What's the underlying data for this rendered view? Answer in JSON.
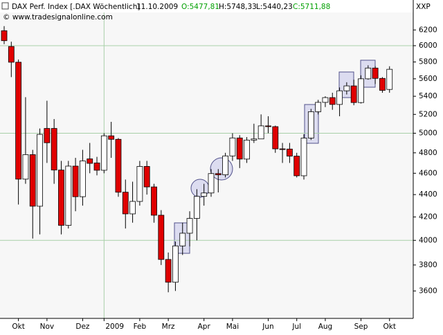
{
  "chart_data": {
    "type": "candlestick",
    "header": {
      "name": "DAX Perf. Index [.DAX  Wöchentlich]",
      "date": "11.10.2009",
      "open": "O:5477,81",
      "high": "H:5748,33",
      "low": "L:5440,23",
      "close": "C:5711,88",
      "source": "© www.tradesignalonline.com",
      "corner": "XXP"
    },
    "categories": [
      null,
      null,
      "Okt",
      null,
      null,
      null,
      "Nov",
      null,
      null,
      null,
      null,
      "Dez",
      null,
      null,
      "2009",
      null,
      null,
      null,
      null,
      "Feb",
      null,
      null,
      null,
      "Mrz",
      null,
      null,
      null,
      null,
      "Apr",
      null,
      null,
      null,
      "Mai",
      null,
      null,
      null,
      null,
      "Jun",
      null,
      null,
      null,
      "Jul",
      null,
      null,
      null,
      "Aug",
      null,
      null,
      null,
      null,
      "Sep",
      null,
      null,
      null,
      "Okt"
    ],
    "open": [
      6190,
      5990,
      5797,
      4544,
      4782,
      4295,
      5050,
      5050,
      4631,
      4127,
      4669,
      4381,
      4740,
      4700,
      4629,
      4973,
      4937,
      4422,
      4227,
      4338,
      4666,
      4471,
      4215,
      3844,
      3666,
      3954,
      4060,
      4187,
      4384,
      4415,
      4597,
      4585,
      4769,
      4951,
      4738,
      4929,
      4941,
      5077,
      5069,
      4840,
      4838,
      4767,
      4576,
      4950,
      5229,
      5332,
      5385,
      5309,
      5462,
      5518,
      5330,
      5600,
      5727,
      5605,
      5477.81
    ],
    "high": [
      6250,
      6050,
      5830,
      5390,
      4830,
      5050,
      5350,
      5150,
      4720,
      4720,
      4750,
      4830,
      4900,
      4760,
      5000,
      5120,
      4950,
      4540,
      4520,
      4720,
      4720,
      4500,
      4260,
      3900,
      3990,
      4150,
      4250,
      4450,
      4500,
      4640,
      4640,
      4800,
      5000,
      4980,
      4960,
      5100,
      5200,
      5180,
      5080,
      4900,
      4900,
      4800,
      4990,
      5260,
      5360,
      5400,
      5440,
      5500,
      5560,
      5590,
      5640,
      5760,
      5750,
      5620,
      5748.33
    ],
    "low": [
      6020,
      5620,
      4310,
      4500,
      4015,
      4050,
      4700,
      4500,
      4050,
      4100,
      4250,
      4300,
      4600,
      4580,
      4600,
      4750,
      4380,
      4100,
      4150,
      4300,
      4400,
      4150,
      3800,
      3590,
      3600,
      3880,
      3950,
      4000,
      4300,
      4380,
      4420,
      4560,
      4720,
      4650,
      4700,
      4900,
      4950,
      5000,
      4800,
      4700,
      4700,
      4560,
      4540,
      4930,
      5200,
      5280,
      5250,
      5180,
      5420,
      5300,
      5320,
      5590,
      5540,
      5440,
      5440.23
    ],
    "close": [
      6063,
      5797,
      4544,
      4782,
      4295,
      4988,
      4902,
      4631,
      4127,
      4669,
      4381,
      4720,
      4696,
      4629,
      4973,
      4937,
      4422,
      4227,
      4338,
      4666,
      4471,
      4215,
      3844,
      3666,
      3954,
      4060,
      4187,
      4384,
      4415,
      4597,
      4585,
      4769,
      4951,
      4738,
      4929,
      4941,
      5077,
      5069,
      4840,
      4838,
      4767,
      4576,
      4950,
      5229,
      5332,
      5385,
      5309,
      5462,
      5518,
      5330,
      5600,
      5727,
      5605,
      5467,
      5711.88
    ],
    "up_color": "#ffffff",
    "down_color": "#e00000",
    "log_scale": true,
    "ylim": [
      3400,
      6430
    ],
    "yticks": [
      3600,
      3800,
      4000,
      4200,
      4400,
      4600,
      4800,
      5000,
      5200,
      5400,
      5600,
      5800,
      6000,
      6200
    ],
    "grid_yticks": [
      4000,
      5000,
      6000
    ]
  }
}
